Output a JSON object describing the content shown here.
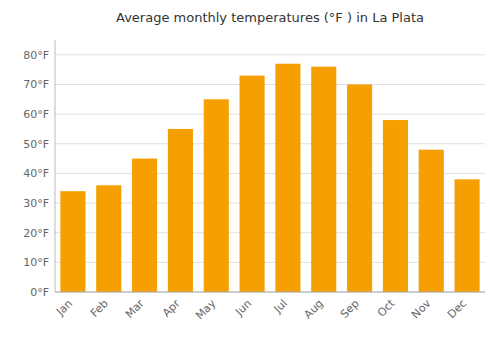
{
  "chart_data": {
    "type": "bar",
    "title": "Average monthly temperatures (°F ) in La Plata",
    "categories": [
      "Jan",
      "Feb",
      "Mar",
      "Apr",
      "May",
      "Jun",
      "Jul",
      "Aug",
      "Sep",
      "Oct",
      "Nov",
      "Dec"
    ],
    "values": [
      34,
      36,
      45,
      55,
      65,
      73,
      77,
      76,
      70,
      58,
      48,
      38
    ],
    "color": "#F5A000",
    "ylim": [
      0,
      85
    ],
    "yticks": [
      {
        "value": 0,
        "label": "0°F"
      },
      {
        "value": 10,
        "label": "10°F"
      },
      {
        "value": 20,
        "label": "20°F"
      },
      {
        "value": 30,
        "label": "30°F"
      },
      {
        "value": 40,
        "label": "40°F"
      },
      {
        "value": 50,
        "label": "50°F"
      },
      {
        "value": 60,
        "label": "60°F"
      },
      {
        "value": 70,
        "label": "70°F"
      },
      {
        "value": 80,
        "label": "80°F"
      }
    ],
    "grid": true
  }
}
